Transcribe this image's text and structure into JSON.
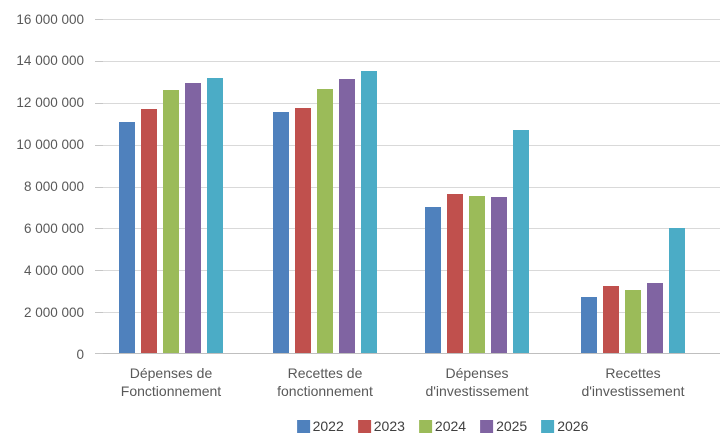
{
  "chart_data": {
    "type": "bar",
    "title": "",
    "xlabel": "",
    "ylabel": "",
    "categories": [
      "Dépenses de\nFonctionnement",
      "Recettes de\nfonctionnement",
      "Dépenses\nd'investissement",
      "Recettes\nd'investissement"
    ],
    "series": [
      {
        "name": "2022",
        "color": "#4f81bd",
        "values": [
          11100000,
          11550000,
          7000000,
          2700000
        ]
      },
      {
        "name": "2023",
        "color": "#c0504d",
        "values": [
          11700000,
          11750000,
          7650000,
          3250000
        ]
      },
      {
        "name": "2024",
        "color": "#9bbb59",
        "values": [
          12600000,
          12650000,
          7550000,
          3050000
        ]
      },
      {
        "name": "2025",
        "color": "#8064a2",
        "values": [
          12950000,
          13150000,
          7500000,
          3400000
        ]
      },
      {
        "name": "2026",
        "color": "#4bacc6",
        "values": [
          13200000,
          13500000,
          10700000,
          6000000
        ]
      }
    ],
    "ylim": [
      0,
      16000000
    ],
    "ytick_step": 2000000,
    "ytick_labels": [
      "0",
      "2 000 000",
      "4 000 000",
      "6 000 000",
      "8 000 000",
      "10 000 000",
      "12 000 000",
      "14 000 000",
      "16 000 000"
    ],
    "grid": true,
    "legend_position": "bottom",
    "axis_text_color": "#595959",
    "legend_text_color": "#404040",
    "gridline_color": "#d9d9d9",
    "background_color": "#ffffff"
  }
}
